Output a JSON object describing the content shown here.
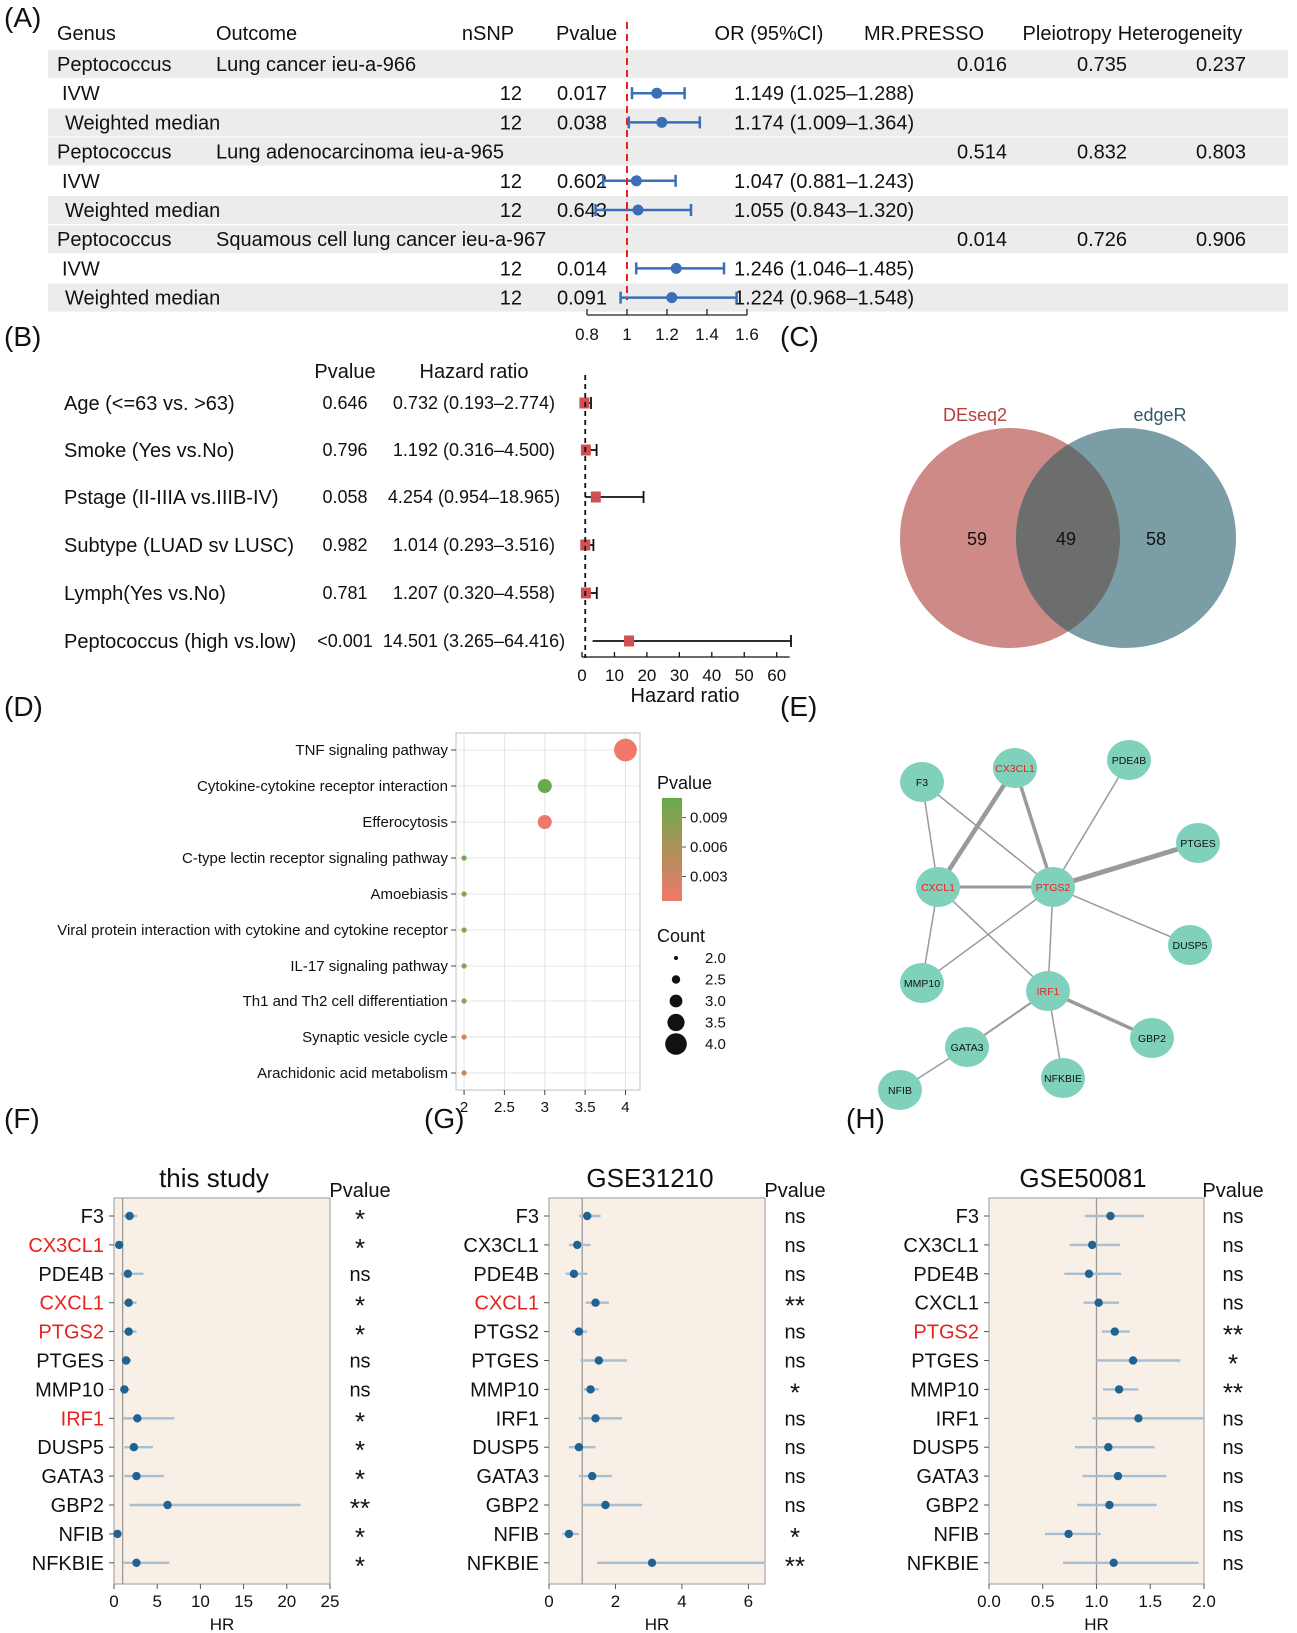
{
  "panel_labels": [
    "(A)",
    "(B)",
    "(C)",
    "(D)",
    "(E)",
    "(F)",
    "(G)",
    "(H)"
  ],
  "chart_data": [
    {
      "panel": "A",
      "type": "forest",
      "columns": [
        "Genus",
        "Outcome",
        "nSNP",
        "Pvalue",
        "OR (95%CI)",
        "MR.PRESSO",
        "Pleiotropy",
        "Heterogeneity"
      ],
      "groups": [
        {
          "genus": "Peptococcus",
          "outcome": "Lung cancer ieu-a-966",
          "mr_presso": "0.016",
          "pleiotropy": "0.735",
          "heterogeneity": "0.237",
          "rows": [
            {
              "method": "IVW",
              "nsnp": "12",
              "pvalue": "0.017",
              "or_text": "1.149 (1.025–1.288)",
              "or": 1.149,
              "lo": 1.025,
              "hi": 1.288
            },
            {
              "method": "Weighted median",
              "nsnp": "12",
              "pvalue": "0.038",
              "or_text": "1.174 (1.009–1.364)",
              "or": 1.174,
              "lo": 1.009,
              "hi": 1.364
            }
          ]
        },
        {
          "genus": "Peptococcus",
          "outcome": "Lung adenocarcinoma ieu-a-965",
          "mr_presso": "0.514",
          "pleiotropy": "0.832",
          "heterogeneity": "0.803",
          "rows": [
            {
              "method": "IVW",
              "nsnp": "12",
              "pvalue": "0.602",
              "or_text": "1.047 (0.881–1.243)",
              "or": 1.047,
              "lo": 0.881,
              "hi": 1.243
            },
            {
              "method": "Weighted median",
              "nsnp": "12",
              "pvalue": "0.643",
              "or_text": "1.055 (0.843–1.320)",
              "or": 1.055,
              "lo": 0.843,
              "hi": 1.32
            }
          ]
        },
        {
          "genus": "Peptococcus",
          "outcome": "Squamous cell lung cancer ieu-a-967",
          "mr_presso": "0.014",
          "pleiotropy": "0.726",
          "heterogeneity": "0.906",
          "rows": [
            {
              "method": "IVW",
              "nsnp": "12",
              "pvalue": "0.014",
              "or_text": "1.246 (1.046–1.485)",
              "or": 1.246,
              "lo": 1.046,
              "hi": 1.485
            },
            {
              "method": "Weighted median",
              "nsnp": "12",
              "pvalue": "0.091",
              "or_text": "1.224 (0.968–1.548)",
              "or": 1.224,
              "lo": 0.968,
              "hi": 1.548
            }
          ]
        }
      ],
      "xticks": [
        "0.8",
        "1",
        "1.2",
        "1.4",
        "1.6"
      ],
      "xlim": [
        0.8,
        1.6
      ],
      "reference": 1,
      "colors": {
        "point": "#3a6fb8",
        "reference": "#e8221d",
        "stripe": "#ececec"
      }
    },
    {
      "panel": "B",
      "type": "forest",
      "col_pvalue": "Pvalue",
      "col_hr": "Hazard ratio",
      "xlabel": "Hazard ratio",
      "xticks": [
        "0",
        "10",
        "20",
        "30",
        "40",
        "50",
        "60"
      ],
      "xlim": [
        0,
        64
      ],
      "reference": 1,
      "rows": [
        {
          "label": "Age (<=63 vs. >63)",
          "pvalue": "0.646",
          "hr_text": "0.732 (0.193–2.774)",
          "hr": 0.732,
          "lo": 0.193,
          "hi": 2.774
        },
        {
          "label": "Smoke (Yes vs.No)",
          "pvalue": "0.796",
          "hr_text": "1.192 (0.316–4.500)",
          "hr": 1.192,
          "lo": 0.316,
          "hi": 4.5
        },
        {
          "label": "Pstage (II-IIIA vs.IIIB-IV)",
          "pvalue": "0.058",
          "hr_text": "4.254 (0.954–18.965)",
          "hr": 4.254,
          "lo": 0.954,
          "hi": 18.965
        },
        {
          "label": "Subtype (LUAD sv LUSC)",
          "pvalue": "0.982",
          "hr_text": "1.014 (0.293–3.516)",
          "hr": 1.014,
          "lo": 0.293,
          "hi": 3.516
        },
        {
          "label": "Lymph(Yes vs.No)",
          "pvalue": "0.781",
          "hr_text": "1.207 (0.320–4.558)",
          "hr": 1.207,
          "lo": 0.32,
          "hi": 4.558
        },
        {
          "label": "Peptococcus (high vs.low)",
          "pvalue": "<0.001",
          "hr_text": "14.501 (3.265–64.416)",
          "hr": 14.501,
          "lo": 3.265,
          "hi": 64.416
        }
      ],
      "colors": {
        "point": "#cf5050"
      }
    },
    {
      "panel": "C",
      "type": "venn",
      "sets": [
        {
          "name": "DEseq2",
          "only": "59",
          "color": "#cd8a86",
          "label_color": "#b5403c"
        },
        {
          "name": "edgeR",
          "only": "58",
          "color": "#7b9ea6",
          "label_color": "#2e5c69"
        }
      ],
      "intersection": "49",
      "intersection_color": "#6c6e6e"
    },
    {
      "panel": "D",
      "type": "scatter",
      "categories": [
        "TNF signaling pathway",
        "Cytokine-cytokine receptor interaction",
        "Efferocytosis",
        "C-type lectin receptor signaling pathway",
        "Amoebiasis",
        "Viral protein interaction with cytokine and cytokine receptor",
        "IL-17 signaling pathway",
        "Th1 and Th2 cell differentiation",
        "Synaptic vesicle cycle",
        "Arachidonic acid metabolism"
      ],
      "counts": [
        4,
        3,
        3,
        2,
        2,
        2,
        2,
        2,
        2,
        2
      ],
      "pvalues": [
        0.0005,
        0.011,
        0.0006,
        0.011,
        0.008,
        0.009,
        0.007,
        0.006,
        0.003,
        0.004
      ],
      "xticks": [
        "2",
        "2.5",
        "3",
        "3.5",
        "4"
      ],
      "xlim": [
        1.9,
        4.18
      ],
      "legend_pvalue_title": "Pvalue",
      "legend_pvalue_ticks": [
        "0.009",
        "0.006",
        "0.003"
      ],
      "legend_pvalue_values": [
        0.009,
        0.006,
        0.003
      ],
      "legend_pvalue_range": [
        0.0005,
        0.011
      ],
      "legend_count_title": "Count",
      "legend_count_values": [
        "2.0",
        "2.5",
        "3.0",
        "3.5",
        "4.0"
      ],
      "colors": {
        "high_p": "#6aaa4a",
        "low_p": "#f0786a",
        "grid": "#e4e4e4"
      }
    },
    {
      "panel": "E",
      "type": "network",
      "nodes": [
        {
          "id": "F3",
          "highlight": false
        },
        {
          "id": "CX3CL1",
          "highlight": true
        },
        {
          "id": "PDE4B",
          "highlight": false
        },
        {
          "id": "PTGES",
          "highlight": false
        },
        {
          "id": "CXCL1",
          "highlight": true
        },
        {
          "id": "PTGS2",
          "highlight": true
        },
        {
          "id": "DUSP5",
          "highlight": false
        },
        {
          "id": "MMP10",
          "highlight": false
        },
        {
          "id": "IRF1",
          "highlight": true
        },
        {
          "id": "GBP2",
          "highlight": false
        },
        {
          "id": "GATA3",
          "highlight": false
        },
        {
          "id": "NFKBIE",
          "highlight": false
        },
        {
          "id": "NFIB",
          "highlight": false
        }
      ],
      "edges": [
        {
          "s": "CX3CL1",
          "t": "CXCL1",
          "w": 4.5
        },
        {
          "s": "CX3CL1",
          "t": "PTGS2",
          "w": 3.5
        },
        {
          "s": "F3",
          "t": "CXCL1",
          "w": 1.5
        },
        {
          "s": "F3",
          "t": "PTGS2",
          "w": 1.5
        },
        {
          "s": "PDE4B",
          "t": "PTGS2",
          "w": 1.5
        },
        {
          "s": "PTGES",
          "t": "PTGS2",
          "w": 5
        },
        {
          "s": "CXCL1",
          "t": "PTGS2",
          "w": 3
        },
        {
          "s": "CXCL1",
          "t": "MMP10",
          "w": 1.5
        },
        {
          "s": "CXCL1",
          "t": "IRF1",
          "w": 1.5
        },
        {
          "s": "PTGS2",
          "t": "DUSP5",
          "w": 1.5
        },
        {
          "s": "PTGS2",
          "t": "MMP10",
          "w": 1.5
        },
        {
          "s": "PTGS2",
          "t": "IRF1",
          "w": 1.5
        },
        {
          "s": "IRF1",
          "t": "GBP2",
          "w": 3.5
        },
        {
          "s": "IRF1",
          "t": "GATA3",
          "w": 2
        },
        {
          "s": "IRF1",
          "t": "NFKBIE",
          "w": 1.5
        },
        {
          "s": "GATA3",
          "t": "NFIB",
          "w": 1.5
        }
      ],
      "colors": {
        "node": "#7fd1bc",
        "edge": "#9a9a9a",
        "highlight": "#e8221d"
      }
    },
    {
      "panel": "F",
      "type": "forest",
      "title": "this study",
      "pvalue_header": "Pvalue",
      "xlabel": "HR",
      "xlim": [
        0,
        25
      ],
      "xticks": [
        0,
        5,
        10,
        15,
        20,
        25
      ],
      "reference": 1,
      "genes": [
        "F3",
        "CX3CL1",
        "PDE4B",
        "CXCL1",
        "PTGS2",
        "PTGES",
        "MMP10",
        "IRF1",
        "DUSP5",
        "GATA3",
        "GBP2",
        "NFIB",
        "NFKBIE"
      ],
      "highlight": [
        "CX3CL1",
        "CXCL1",
        "PTGS2",
        "IRF1"
      ],
      "hr": [
        1.8,
        0.6,
        1.6,
        1.7,
        1.7,
        1.4,
        1.2,
        2.7,
        2.3,
        2.6,
        6.2,
        0.4,
        2.6
      ],
      "lo": [
        1.1,
        0.4,
        0.8,
        1.1,
        1.1,
        0.9,
        0.8,
        1.1,
        1.2,
        1.2,
        1.8,
        0.2,
        1.1
      ],
      "hi": [
        2.7,
        0.9,
        3.4,
        2.6,
        2.6,
        2.0,
        1.8,
        7.0,
        4.5,
        5.8,
        21.6,
        0.8,
        6.4
      ],
      "sig": [
        "*",
        "*",
        "ns",
        "*",
        "*",
        "ns",
        "ns",
        "*",
        "*",
        "*",
        "**",
        "*",
        "*"
      ]
    },
    {
      "panel": "G",
      "type": "forest",
      "title": "GSE31210",
      "pvalue_header": "Pvalue",
      "xlabel": "HR",
      "xlim": [
        0,
        6.5
      ],
      "xticks": [
        0,
        2,
        4,
        6
      ],
      "reference": 1,
      "genes": [
        "F3",
        "CX3CL1",
        "PDE4B",
        "CXCL1",
        "PTGS2",
        "PTGES",
        "MMP10",
        "IRF1",
        "DUSP5",
        "GATA3",
        "GBP2",
        "NFIB",
        "NFKBIE"
      ],
      "highlight": [
        "CXCL1"
      ],
      "hr": [
        1.15,
        0.85,
        0.75,
        1.4,
        0.9,
        1.5,
        1.25,
        1.4,
        0.9,
        1.3,
        1.7,
        0.6,
        3.1
      ],
      "lo": [
        0.9,
        0.6,
        0.5,
        1.1,
        0.7,
        0.95,
        1.05,
        0.9,
        0.6,
        0.9,
        1.0,
        0.4,
        1.45
      ],
      "hi": [
        1.55,
        1.25,
        1.15,
        1.8,
        1.15,
        2.35,
        1.5,
        2.2,
        1.4,
        1.9,
        2.8,
        0.9,
        6.5
      ],
      "sig": [
        "ns",
        "ns",
        "ns",
        "**",
        "ns",
        "ns",
        "*",
        "ns",
        "ns",
        "ns",
        "ns",
        "*",
        "**"
      ]
    },
    {
      "panel": "H",
      "type": "forest",
      "title": "GSE50081",
      "pvalue_header": "Pvalue",
      "xlabel": "HR",
      "xlim": [
        0,
        2
      ],
      "xticks": [
        "0.0",
        "0.5",
        "1.0",
        "1.5",
        "2.0"
      ],
      "reference": 1,
      "genes": [
        "F3",
        "CX3CL1",
        "PDE4B",
        "CXCL1",
        "PTGS2",
        "PTGES",
        "MMP10",
        "IRF1",
        "DUSP5",
        "GATA3",
        "GBP2",
        "NFIB",
        "NFKBIE"
      ],
      "highlight": [
        "PTGS2"
      ],
      "hr": [
        1.13,
        0.96,
        0.93,
        1.02,
        1.17,
        1.34,
        1.21,
        1.39,
        1.11,
        1.2,
        1.12,
        0.74,
        1.16
      ],
      "lo": [
        0.89,
        0.75,
        0.7,
        0.88,
        1.05,
        1.0,
        1.06,
        0.96,
        0.8,
        0.87,
        0.82,
        0.52,
        0.69
      ],
      "hi": [
        1.44,
        1.22,
        1.23,
        1.21,
        1.31,
        1.78,
        1.39,
        2.02,
        1.54,
        1.65,
        1.56,
        1.04,
        1.95
      ],
      "sig": [
        "ns",
        "ns",
        "ns",
        "ns",
        "**",
        "*",
        "**",
        "ns",
        "ns",
        "ns",
        "ns",
        "ns",
        "ns"
      ]
    }
  ]
}
